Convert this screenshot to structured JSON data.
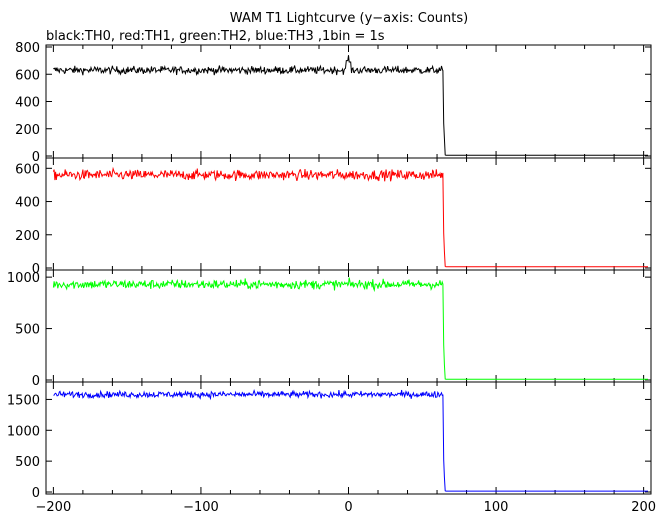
{
  "title": "WAM T1 Lightcurve (y−axis: Counts)",
  "subtitle": "black:TH0, red:TH1, green:TH2, blue:TH3 ,1bin = 1s",
  "chart_data": [
    {
      "type": "line",
      "series_name": "TH0",
      "color": "#000000",
      "ylim": [
        0,
        800
      ],
      "yticks": [
        0,
        200,
        400,
        600,
        800
      ],
      "ytick_labels": [
        "0",
        "200",
        "400",
        "600",
        "800"
      ],
      "xlim": [
        -205,
        205
      ],
      "step_x": 64,
      "pre_level": 630,
      "noise": 22,
      "tail": [
        [
          64,
          630
        ],
        [
          64.5,
          240
        ],
        [
          65,
          130
        ],
        [
          65.5,
          8
        ]
      ],
      "post_level": 5,
      "spikes": [
        [
          0,
          740
        ],
        [
          -1,
          700
        ],
        [
          1,
          690
        ]
      ]
    },
    {
      "type": "line",
      "series_name": "TH1",
      "color": "#ff0000",
      "ylim": [
        0,
        650
      ],
      "yticks": [
        0,
        200,
        400,
        600
      ],
      "ytick_labels": [
        "0",
        "200",
        "400",
        "600"
      ],
      "xlim": [
        -205,
        205
      ],
      "step_x": 64,
      "pre_level": 560,
      "noise": 24,
      "tail": [
        [
          64,
          560
        ],
        [
          64.5,
          210
        ],
        [
          65,
          100
        ],
        [
          65.5,
          10
        ]
      ],
      "post_level": 8,
      "spikes": []
    },
    {
      "type": "line",
      "series_name": "TH2",
      "color": "#00ff00",
      "ylim": [
        0,
        1050
      ],
      "yticks": [
        0,
        500,
        1000
      ],
      "ytick_labels": [
        "0",
        "500",
        "1000"
      ],
      "xlim": [
        -205,
        205
      ],
      "step_x": 64,
      "pre_level": 930,
      "noise": 35,
      "tail": [
        [
          64,
          930
        ],
        [
          64.5,
          340
        ],
        [
          65,
          150
        ],
        [
          65.5,
          10
        ]
      ],
      "post_level": 8,
      "spikes": []
    },
    {
      "type": "line",
      "series_name": "TH3",
      "color": "#0000ff",
      "ylim": [
        0,
        1750
      ],
      "yticks": [
        0,
        500,
        1000,
        1500
      ],
      "ytick_labels": [
        "0",
        "500",
        "1000",
        "1500"
      ],
      "xlim": [
        -205,
        205
      ],
      "step_x": 64,
      "pre_level": 1580,
      "noise": 40,
      "tail": [
        [
          64,
          1580
        ],
        [
          64.5,
          520
        ],
        [
          65,
          240
        ],
        [
          65.5,
          20
        ]
      ],
      "post_level": 15,
      "spikes": []
    }
  ],
  "x_axis": {
    "ticks": [
      -200,
      -100,
      0,
      100,
      200
    ],
    "tick_labels": [
      "−200",
      "−100",
      "0",
      "100",
      "200"
    ]
  }
}
